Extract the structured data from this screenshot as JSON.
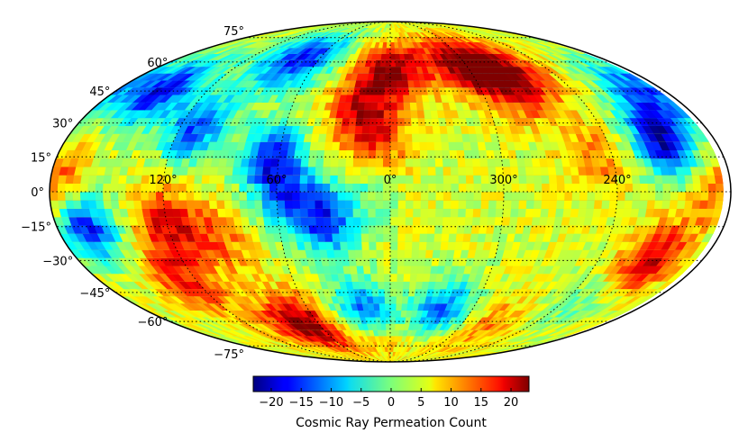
{
  "chart_data": {
    "type": "heatmap",
    "projection": "mollweide",
    "colormap": "jet",
    "grid": true,
    "colorbar": {
      "label": "Cosmic Ray Permeation Count",
      "min": -23,
      "max": 23,
      "ticks": [
        -20,
        -15,
        -10,
        -5,
        0,
        5,
        10,
        15,
        20
      ],
      "tick_labels": [
        "−20",
        "−15",
        "−10",
        "−5",
        "0",
        "5",
        "10",
        "15",
        "20"
      ]
    },
    "latitude_lines": [
      -75,
      -60,
      -45,
      -30,
      -15,
      0,
      15,
      30,
      45,
      60,
      75
    ],
    "latitude_labels": [
      "−75°",
      "−60°",
      "−45°",
      "−30°",
      "−15°",
      "0°",
      "15°",
      "30°",
      "45°",
      "60°",
      "75°"
    ],
    "longitude_lines": [
      120,
      60,
      0,
      300,
      240
    ],
    "longitude_labels": [
      "120°",
      "60°",
      "0°",
      "300°",
      "240°"
    ],
    "hotspots": [
      {
        "lon": 0,
        "lat": 55,
        "value": 20
      },
      {
        "lon": 20,
        "lat": 35,
        "value": 14
      },
      {
        "lon": 5,
        "lat": 22,
        "value": 12
      },
      {
        "lon": -60,
        "lat": 58,
        "value": 21
      },
      {
        "lon": -85,
        "lat": 48,
        "value": 16
      },
      {
        "lon": 75,
        "lat": 62,
        "value": -19
      },
      {
        "lon": 150,
        "lat": 45,
        "value": -20
      },
      {
        "lon": 110,
        "lat": 28,
        "value": -16
      },
      {
        "lon": 65,
        "lat": 15,
        "value": -17
      },
      {
        "lon": -150,
        "lat": 22,
        "value": -22
      },
      {
        "lon": -165,
        "lat": 45,
        "value": -15
      },
      {
        "lon": 165,
        "lat": -15,
        "value": -19
      },
      {
        "lon": 120,
        "lat": -14,
        "value": 16
      },
      {
        "lon": 95,
        "lat": -20,
        "value": 11
      },
      {
        "lon": 35,
        "lat": -12,
        "value": -18
      },
      {
        "lon": 55,
        "lat": -2,
        "value": -12
      },
      {
        "lon": 70,
        "lat": -62,
        "value": 22
      },
      {
        "lon": 130,
        "lat": -40,
        "value": 14
      },
      {
        "lon": 20,
        "lat": -55,
        "value": -17
      },
      {
        "lon": -40,
        "lat": -55,
        "value": -17
      },
      {
        "lon": -75,
        "lat": -62,
        "value": 12
      },
      {
        "lon": -150,
        "lat": -30,
        "value": 18
      },
      {
        "lon": -110,
        "lat": 15,
        "value": 10
      },
      {
        "lon": -170,
        "lat": -5,
        "value": 8
      },
      {
        "lon": 175,
        "lat": 5,
        "value": 11
      },
      {
        "lon": -130,
        "lat": -50,
        "value": -4
      },
      {
        "lon": 10,
        "lat": 0,
        "value": -3
      },
      {
        "lon": 0,
        "lat": -65,
        "value": 10
      },
      {
        "lon": -100,
        "lat": 60,
        "value": 6
      }
    ]
  }
}
